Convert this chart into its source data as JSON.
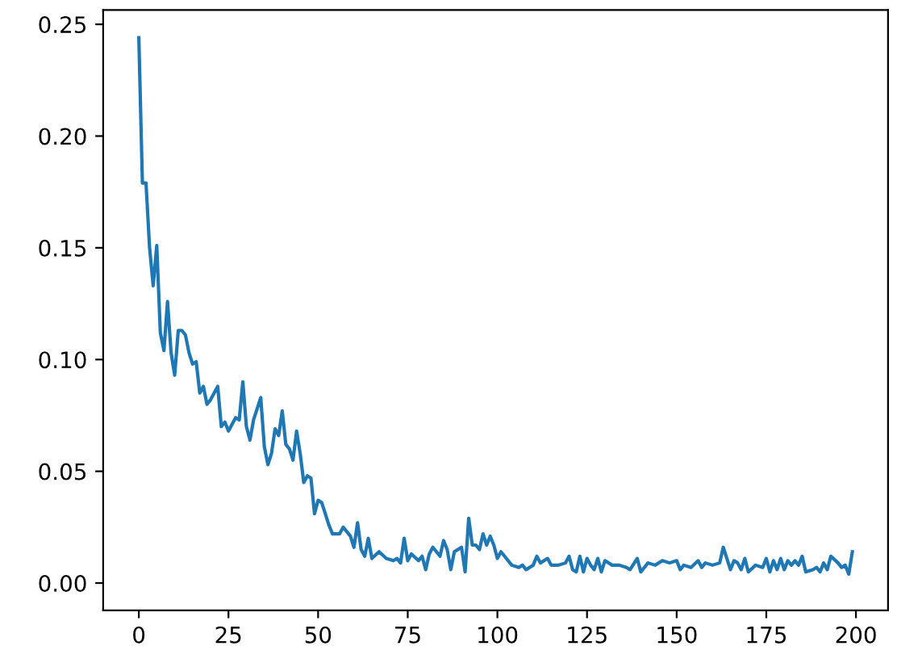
{
  "chart_data": {
    "type": "line",
    "marker": "none",
    "line_style": "solid",
    "grid": false,
    "legend": false,
    "xlim": [
      -9.95,
      208.95
    ],
    "ylim": [
      -0.0122,
      0.2564
    ],
    "xticks": [
      0,
      25,
      50,
      75,
      100,
      125,
      150,
      175,
      200
    ],
    "yticks": [
      {
        "value": 0,
        "label": "0.00"
      },
      {
        "value": 0.05,
        "label": "0.05"
      },
      {
        "value": 0.1,
        "label": "0.10"
      },
      {
        "value": 0.15,
        "label": "0.15"
      },
      {
        "value": 0.2,
        "label": "0.20"
      },
      {
        "value": 0.25,
        "label": "0.25"
      }
    ],
    "series": [
      {
        "color": "#1f77b4",
        "x": [
          0,
          1,
          2,
          3,
          4,
          5,
          6,
          7,
          8,
          9,
          10,
          11,
          12,
          13,
          14,
          15,
          16,
          17,
          18,
          19,
          20,
          22,
          23,
          24,
          25,
          27,
          28,
          29,
          30,
          31,
          32,
          34,
          35,
          36,
          37,
          38,
          39,
          40,
          41,
          42,
          43,
          44,
          45,
          46,
          47,
          48,
          49,
          50,
          51,
          52,
          53,
          54,
          56,
          57,
          59,
          60,
          61,
          62,
          63,
          64,
          65,
          67,
          69,
          71,
          72,
          73,
          74,
          75,
          76,
          78,
          79,
          80,
          81,
          82,
          84,
          85,
          86,
          87,
          88,
          90,
          91,
          92,
          93,
          94,
          95,
          96,
          97,
          98,
          99,
          100,
          101,
          102,
          104,
          106,
          107,
          108,
          110,
          111,
          112,
          114,
          115,
          117,
          119,
          120,
          121,
          122,
          123,
          124,
          125,
          126,
          127,
          128,
          129,
          130,
          132,
          134,
          136,
          137,
          139,
          140,
          142,
          144,
          146,
          148,
          150,
          151,
          152,
          154,
          156,
          157,
          158,
          160,
          162,
          163,
          164,
          165,
          166,
          167,
          168,
          169,
          170,
          172,
          174,
          175,
          176,
          177,
          178,
          179,
          180,
          181,
          182,
          183,
          184,
          185,
          186,
          188,
          189,
          190,
          191,
          192,
          193,
          195,
          196,
          197,
          198,
          199
        ],
        "values": [
          0.244,
          0.179,
          0.179,
          0.15,
          0.133,
          0.151,
          0.112,
          0.104,
          0.126,
          0.103,
          0.093,
          0.113,
          0.113,
          0.111,
          0.103,
          0.098,
          0.099,
          0.085,
          0.088,
          0.08,
          0.082,
          0.088,
          0.07,
          0.072,
          0.068,
          0.074,
          0.073,
          0.09,
          0.07,
          0.064,
          0.073,
          0.083,
          0.061,
          0.053,
          0.058,
          0.069,
          0.066,
          0.077,
          0.062,
          0.06,
          0.055,
          0.068,
          0.058,
          0.045,
          0.048,
          0.047,
          0.031,
          0.037,
          0.036,
          0.031,
          0.026,
          0.022,
          0.022,
          0.025,
          0.021,
          0.016,
          0.027,
          0.015,
          0.012,
          0.02,
          0.011,
          0.014,
          0.011,
          0.01,
          0.011,
          0.009,
          0.02,
          0.01,
          0.013,
          0.01,
          0.012,
          0.006,
          0.013,
          0.016,
          0.012,
          0.019,
          0.015,
          0.006,
          0.014,
          0.016,
          0.005,
          0.029,
          0.017,
          0.017,
          0.015,
          0.022,
          0.017,
          0.021,
          0.017,
          0.011,
          0.014,
          0.012,
          0.008,
          0.007,
          0.008,
          0.006,
          0.008,
          0.012,
          0.009,
          0.011,
          0.008,
          0.008,
          0.009,
          0.012,
          0.006,
          0.005,
          0.012,
          0.005,
          0.011,
          0.008,
          0.006,
          0.011,
          0.005,
          0.01,
          0.008,
          0.008,
          0.007,
          0.006,
          0.011,
          0.005,
          0.009,
          0.008,
          0.01,
          0.009,
          0.01,
          0.006,
          0.008,
          0.007,
          0.01,
          0.007,
          0.009,
          0.008,
          0.009,
          0.016,
          0.011,
          0.006,
          0.01,
          0.009,
          0.006,
          0.011,
          0.005,
          0.008,
          0.007,
          0.011,
          0.005,
          0.01,
          0.006,
          0.011,
          0.006,
          0.01,
          0.008,
          0.01,
          0.008,
          0.012,
          0.005,
          0.006,
          0.007,
          0.005,
          0.009,
          0.006,
          0.012,
          0.009,
          0.007,
          0.008,
          0.004,
          0.014
        ]
      }
    ]
  }
}
